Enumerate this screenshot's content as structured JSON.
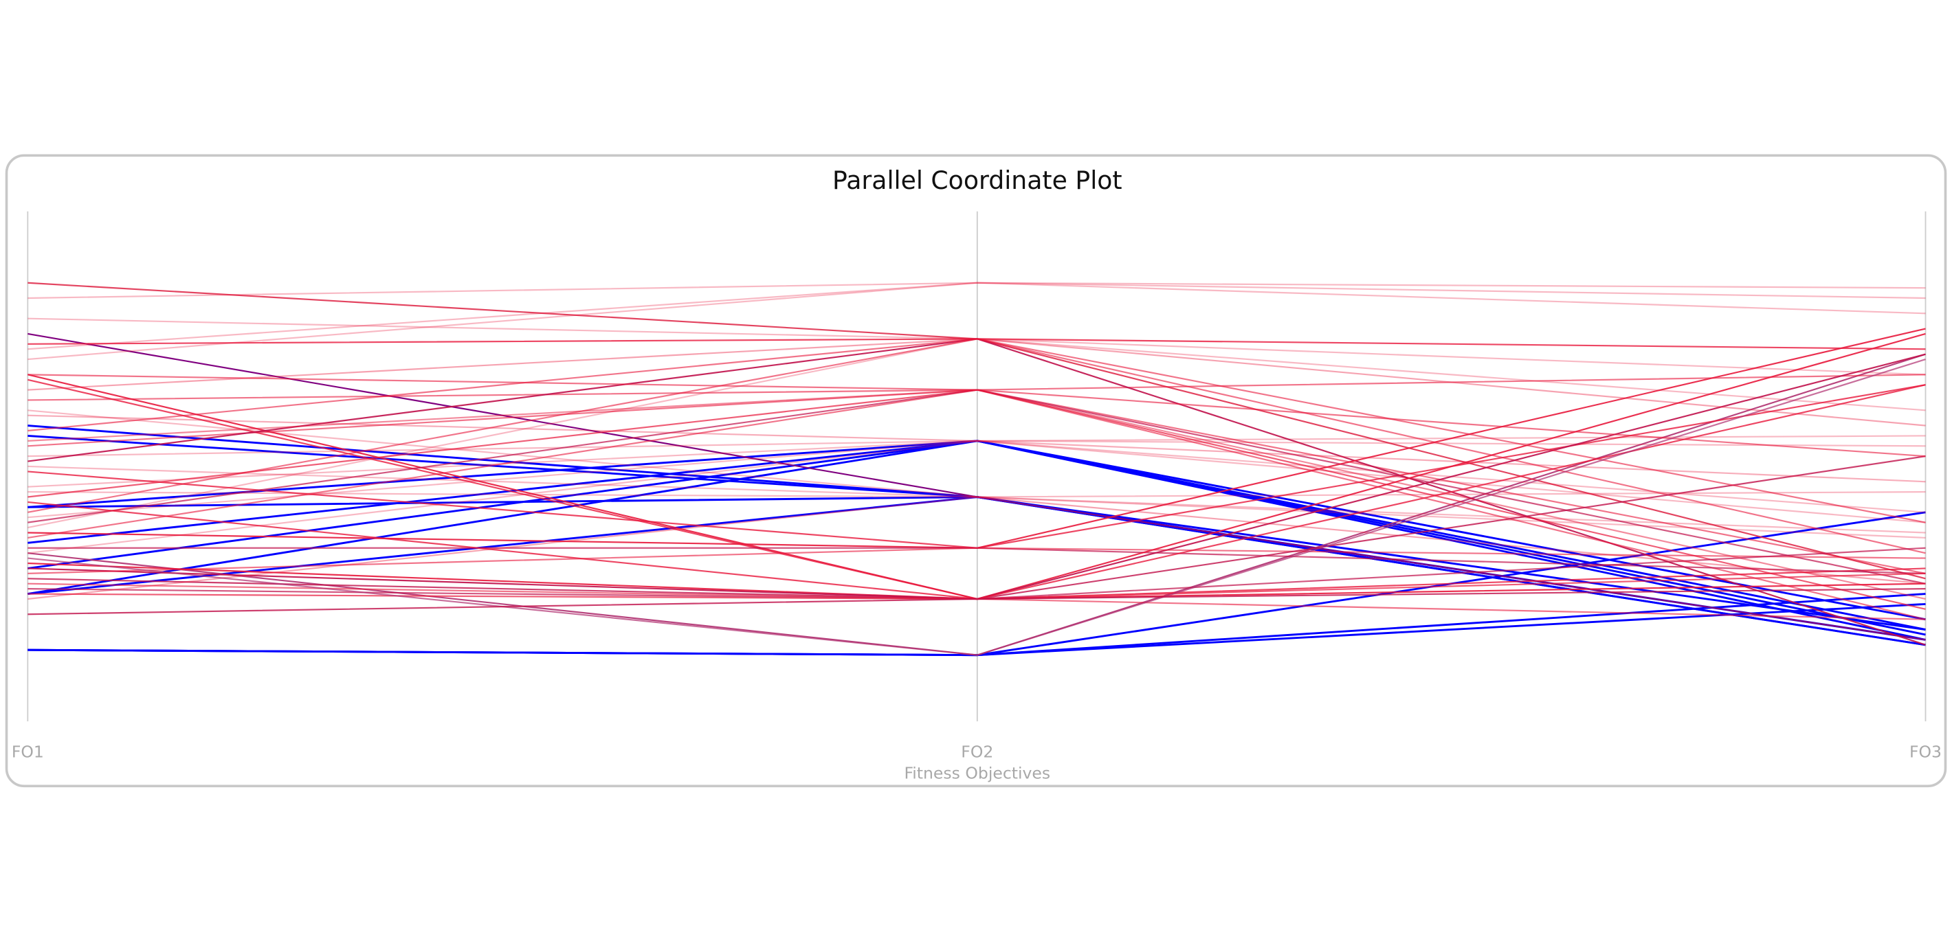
{
  "chart_data": {
    "type": "parallel-coordinates",
    "title": "Parallel Coordinate Plot",
    "xlabel": "Fitness Objectives",
    "axes": [
      "FO1",
      "FO2",
      "FO3"
    ],
    "ylim": [
      0,
      1
    ],
    "grid": false,
    "legend": "none",
    "colors": {
      "blue": "#0000ff",
      "purple": "#800080",
      "magenta": "#b03070",
      "red": "#e8183c",
      "dark_red": "#c0104a",
      "axis": "#cccccc",
      "frame": "#c8c8c8"
    },
    "lines": [
      {
        "values": [
          0.58,
          0.44,
          0.15
        ],
        "color": "#0000ff",
        "opacity": 1
      },
      {
        "values": [
          0.56,
          0.44,
          0.16
        ],
        "color": "#0000ff",
        "opacity": 1
      },
      {
        "values": [
          0.42,
          0.55,
          0.17
        ],
        "color": "#0000ff",
        "opacity": 1
      },
      {
        "values": [
          0.35,
          0.55,
          0.18
        ],
        "color": "#0000ff",
        "opacity": 1
      },
      {
        "values": [
          0.3,
          0.55,
          0.16
        ],
        "color": "#0000ff",
        "opacity": 1
      },
      {
        "values": [
          0.25,
          0.55,
          0.2
        ],
        "color": "#0000ff",
        "opacity": 1
      },
      {
        "values": [
          0.14,
          0.13,
          0.41
        ],
        "color": "#0000ff",
        "opacity": 1
      },
      {
        "values": [
          0.14,
          0.13,
          0.25
        ],
        "color": "#0000ff",
        "opacity": 1
      },
      {
        "values": [
          0.14,
          0.13,
          0.23
        ],
        "color": "#0000ff",
        "opacity": 1
      },
      {
        "values": [
          0.25,
          0.44,
          0.18
        ],
        "color": "#0000ff",
        "opacity": 1
      },
      {
        "values": [
          0.42,
          0.44,
          0.15
        ],
        "color": "#0000ff",
        "opacity": 1
      },
      {
        "values": [
          0.76,
          0.44,
          0.16
        ],
        "color": "#800080",
        "opacity": 1
      },
      {
        "values": [
          0.33,
          0.13,
          0.72
        ],
        "color": "#b03070",
        "opacity": 0.9
      },
      {
        "values": [
          0.86,
          0.75,
          0.28
        ],
        "color": "#e0304f",
        "opacity": 0.9
      },
      {
        "values": [
          0.83,
          0.86,
          0.83
        ],
        "color": "#e8183c",
        "opacity": 0.3
      },
      {
        "values": [
          0.74,
          0.75,
          0.73
        ],
        "color": "#e8183c",
        "opacity": 0.8
      },
      {
        "values": [
          0.73,
          0.86,
          0.85
        ],
        "color": "#e8183c",
        "opacity": 0.3
      },
      {
        "values": [
          0.68,
          0.24,
          0.27
        ],
        "color": "#e8183c",
        "opacity": 0.9
      },
      {
        "values": [
          0.67,
          0.24,
          0.3
        ],
        "color": "#e8183c",
        "opacity": 0.8
      },
      {
        "values": [
          0.63,
          0.65,
          0.29
        ],
        "color": "#e8183c",
        "opacity": 0.6
      },
      {
        "values": [
          0.61,
          0.44,
          0.37
        ],
        "color": "#e8183c",
        "opacity": 0.3
      },
      {
        "values": [
          0.54,
          0.65,
          0.68
        ],
        "color": "#e8183c",
        "opacity": 0.6
      },
      {
        "values": [
          0.52,
          0.55,
          0.56
        ],
        "color": "#e8183c",
        "opacity": 0.3
      },
      {
        "values": [
          0.51,
          0.75,
          0.15
        ],
        "color": "#c0104a",
        "opacity": 0.9
      },
      {
        "values": [
          0.49,
          0.34,
          0.66
        ],
        "color": "#e8183c",
        "opacity": 0.8
      },
      {
        "values": [
          0.46,
          0.55,
          0.54
        ],
        "color": "#e8183c",
        "opacity": 0.3
      },
      {
        "values": [
          0.44,
          0.65,
          0.22
        ],
        "color": "#e8183c",
        "opacity": 0.7
      },
      {
        "values": [
          0.41,
          0.75,
          0.33
        ],
        "color": "#e8183c",
        "opacity": 0.6
      },
      {
        "values": [
          0.39,
          0.65,
          0.27
        ],
        "color": "#c0104a",
        "opacity": 0.7
      },
      {
        "values": [
          0.38,
          0.75,
          0.61
        ],
        "color": "#e8183c",
        "opacity": 0.3
      },
      {
        "values": [
          0.37,
          0.34,
          0.77
        ],
        "color": "#e8183c",
        "opacity": 0.9
      },
      {
        "values": [
          0.36,
          0.65,
          0.2
        ],
        "color": "#e8183c",
        "opacity": 0.6
      },
      {
        "values": [
          0.34,
          0.34,
          0.29
        ],
        "color": "#c0104a",
        "opacity": 0.7
      },
      {
        "values": [
          0.33,
          0.55,
          0.41
        ],
        "color": "#e8183c",
        "opacity": 0.3
      },
      {
        "values": [
          0.31,
          0.24,
          0.76
        ],
        "color": "#e8183c",
        "opacity": 0.9
      },
      {
        "values": [
          0.3,
          0.24,
          0.72
        ],
        "color": "#c0104a",
        "opacity": 0.9
      },
      {
        "values": [
          0.29,
          0.34,
          0.32
        ],
        "color": "#e8183c",
        "opacity": 0.6
      },
      {
        "values": [
          0.28,
          0.24,
          0.52
        ],
        "color": "#c0104a",
        "opacity": 0.8
      },
      {
        "values": [
          0.27,
          0.24,
          0.2
        ],
        "color": "#e8183c",
        "opacity": 0.6
      },
      {
        "values": [
          0.26,
          0.24,
          0.34
        ],
        "color": "#c0104a",
        "opacity": 0.7
      },
      {
        "values": [
          0.25,
          0.24,
          0.29
        ],
        "color": "#e8183c",
        "opacity": 0.7
      },
      {
        "values": [
          0.24,
          0.44,
          0.27
        ],
        "color": "#e8183c",
        "opacity": 0.4
      },
      {
        "values": [
          0.68,
          0.65,
          0.52
        ],
        "color": "#e8183c",
        "opacity": 0.6
      },
      {
        "values": [
          0.79,
          0.75,
          0.68
        ],
        "color": "#e8183c",
        "opacity": 0.3
      },
      {
        "values": [
          0.71,
          0.86,
          0.8
        ],
        "color": "#e8183c",
        "opacity": 0.3
      },
      {
        "values": [
          0.57,
          0.75,
          0.39
        ],
        "color": "#e8183c",
        "opacity": 0.6
      },
      {
        "values": [
          0.55,
          0.65,
          0.24
        ],
        "color": "#e8183c",
        "opacity": 0.5
      },
      {
        "values": [
          0.45,
          0.44,
          0.45
        ],
        "color": "#e8183c",
        "opacity": 0.3
      },
      {
        "values": [
          0.4,
          0.55,
          0.39
        ],
        "color": "#e8183c",
        "opacity": 0.3
      },
      {
        "values": [
          0.43,
          0.24,
          0.66
        ],
        "color": "#e8183c",
        "opacity": 0.8
      },
      {
        "values": [
          0.32,
          0.13,
          0.71
        ],
        "color": "#b03070",
        "opacity": 0.7
      },
      {
        "values": [
          0.6,
          0.55,
          0.47
        ],
        "color": "#e8183c",
        "opacity": 0.35
      },
      {
        "values": [
          0.5,
          0.44,
          0.36
        ],
        "color": "#e8183c",
        "opacity": 0.3
      },
      {
        "values": [
          0.65,
          0.75,
          0.58
        ],
        "color": "#e8183c",
        "opacity": 0.4
      },
      {
        "values": [
          0.21,
          0.24,
          0.26
        ],
        "color": "#c0104a",
        "opacity": 0.8
      }
    ]
  }
}
